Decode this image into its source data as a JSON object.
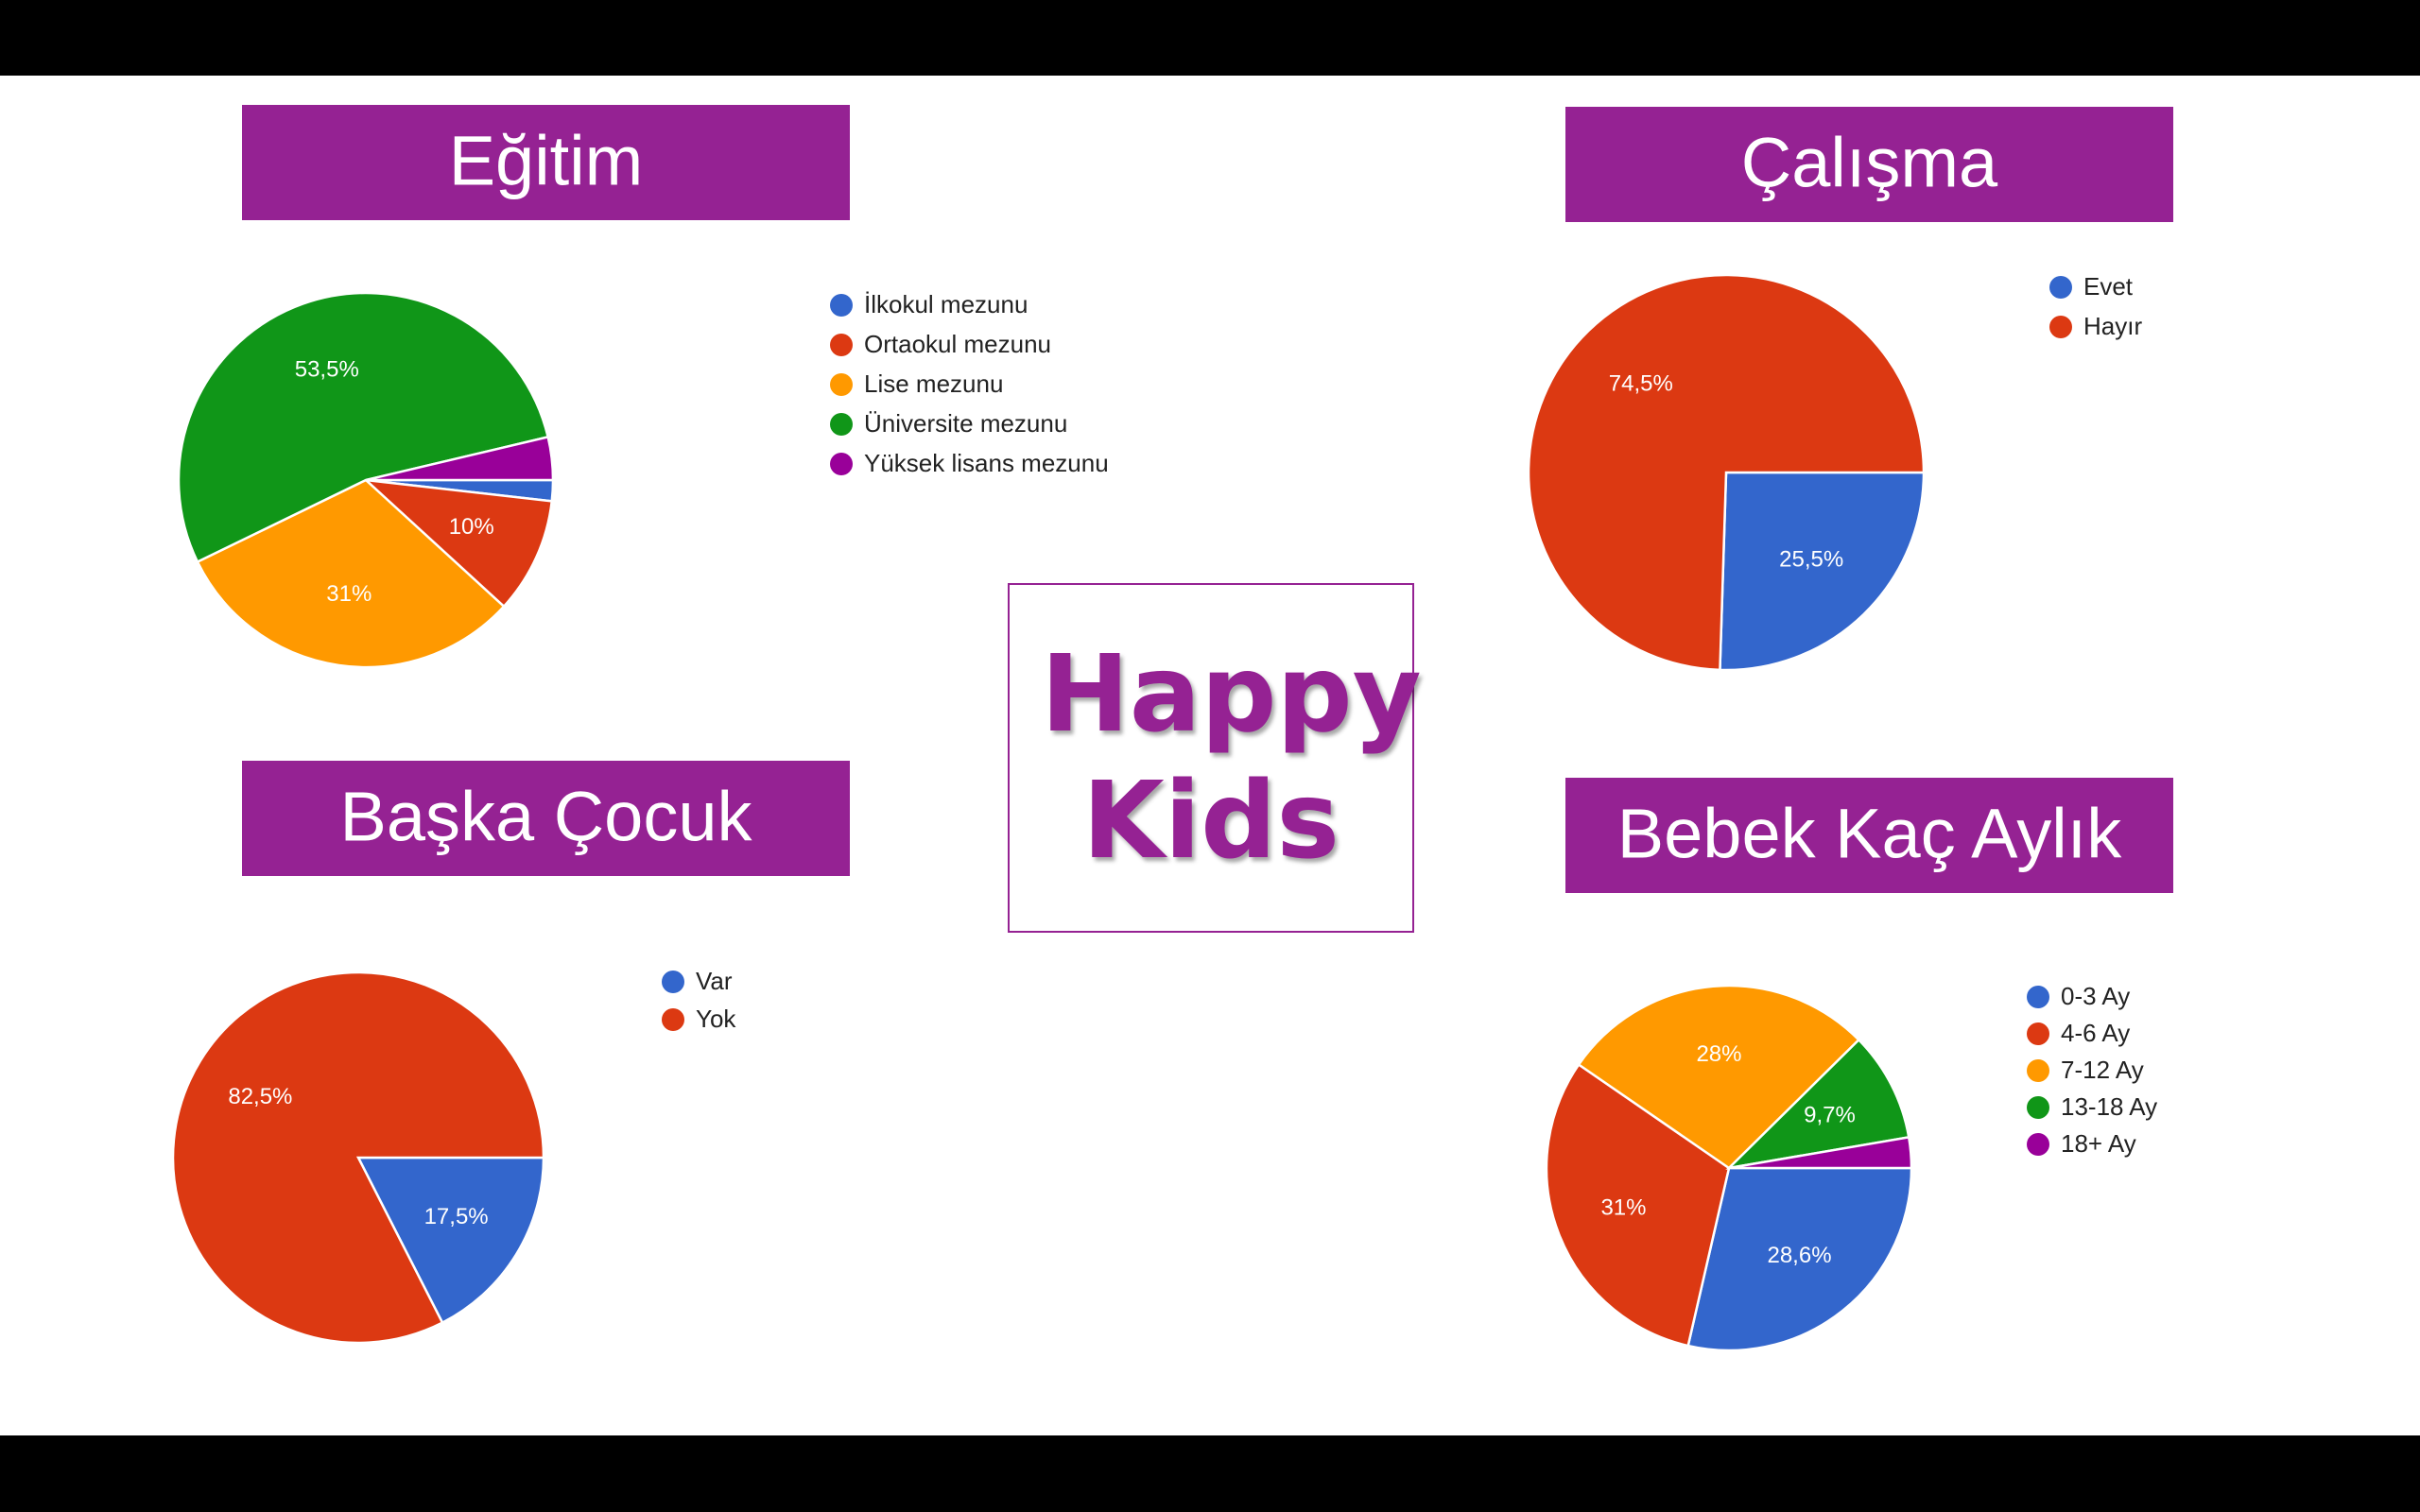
{
  "title": "Happy Kids",
  "chart_data": [
    {
      "type": "pie",
      "title": "Eğitim",
      "categories": [
        "İlkokul mezunu",
        "Ortaokul mezunu",
        "Lise mezunu",
        "Üniversite mezunu",
        "Yüksek lisans mezunu"
      ],
      "values": [
        1.8,
        10,
        31,
        53.5,
        3.7
      ],
      "value_labels": [
        null,
        "10%",
        "31%",
        "53,5%",
        null
      ],
      "colors": [
        "#3366cc",
        "#dc3912",
        "#ff9900",
        "#109618",
        "#990099"
      ]
    },
    {
      "type": "pie",
      "title": "Çalışma",
      "categories": [
        "Evet",
        "Hayır"
      ],
      "values": [
        25.5,
        74.5
      ],
      "value_labels": [
        "25,5%",
        "74,5%"
      ],
      "colors": [
        "#3366cc",
        "#dc3912"
      ]
    },
    {
      "type": "pie",
      "title": "Başka Çocuk",
      "categories": [
        "Var",
        "Yok"
      ],
      "values": [
        17.5,
        82.5
      ],
      "value_labels": [
        "17,5%",
        "82,5%"
      ],
      "colors": [
        "#3366cc",
        "#dc3912"
      ]
    },
    {
      "type": "pie",
      "title": "Bebek Kaç Aylık",
      "categories": [
        "0-3 Ay",
        "4-6 Ay",
        "7-12 Ay",
        "13-18 Ay",
        "18+ Ay"
      ],
      "values": [
        28.6,
        31,
        28,
        9.7,
        2.7
      ],
      "value_labels": [
        "28,6%",
        "31%",
        "28%",
        "9,7%",
        null
      ],
      "colors": [
        "#3366cc",
        "#dc3912",
        "#ff9900",
        "#109618",
        "#990099"
      ]
    }
  ]
}
